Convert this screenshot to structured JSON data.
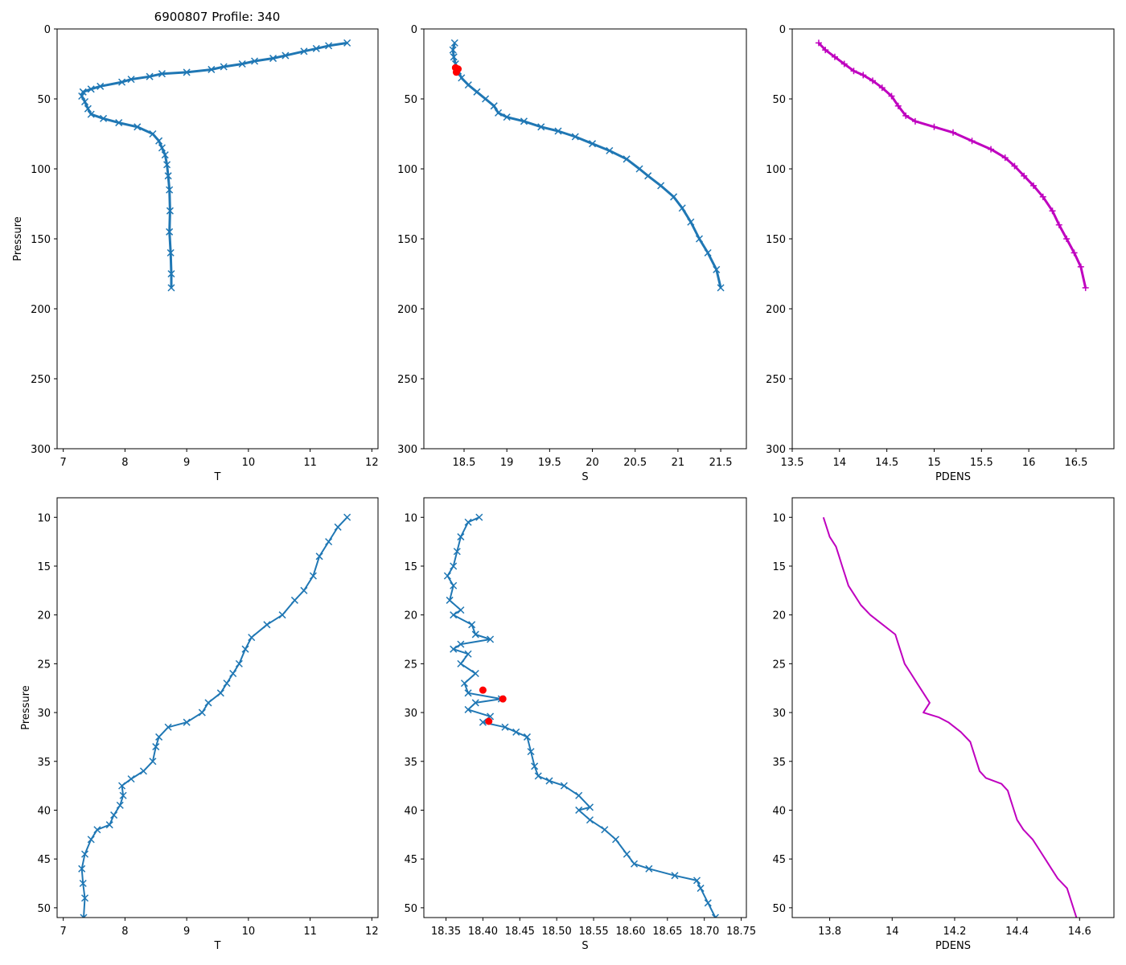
{
  "figure_title": "6900807 Profile: 340",
  "colors": {
    "series": "#1f77b4",
    "flag": "#ff0000",
    "pdens": "#bf00bf",
    "frame": "#000000"
  },
  "chart_data": [
    {
      "id": "top-left",
      "type": "line",
      "title": "6900807 Profile: 340",
      "xlabel": "T",
      "ylabel": "Pressure",
      "xlim": [
        6.9,
        12.1
      ],
      "ylim": [
        300,
        0
      ],
      "xticks": [
        7,
        8,
        9,
        10,
        11,
        12
      ],
      "yticks": [
        0,
        50,
        100,
        150,
        200,
        250,
        300
      ],
      "marker": "x",
      "series": [
        {
          "name": "T",
          "color": "#1f77b4",
          "points": [
            [
              11.6,
              10
            ],
            [
              11.3,
              12
            ],
            [
              11.1,
              14
            ],
            [
              10.9,
              16
            ],
            [
              10.6,
              19
            ],
            [
              10.4,
              21
            ],
            [
              10.1,
              23
            ],
            [
              9.9,
              25
            ],
            [
              9.6,
              27
            ],
            [
              9.4,
              29
            ],
            [
              9.0,
              31
            ],
            [
              8.6,
              32
            ],
            [
              8.4,
              34
            ],
            [
              8.1,
              36
            ],
            [
              7.95,
              38
            ],
            [
              7.6,
              41
            ],
            [
              7.45,
              43
            ],
            [
              7.32,
              45
            ],
            [
              7.3,
              48
            ],
            [
              7.35,
              52
            ],
            [
              7.4,
              57
            ],
            [
              7.45,
              61
            ],
            [
              7.65,
              64
            ],
            [
              7.9,
              67
            ],
            [
              8.2,
              70
            ],
            [
              8.45,
              75
            ],
            [
              8.55,
              80
            ],
            [
              8.6,
              85
            ],
            [
              8.65,
              90
            ],
            [
              8.68,
              97
            ],
            [
              8.7,
              105
            ],
            [
              8.72,
              115
            ],
            [
              8.73,
              130
            ],
            [
              8.72,
              145
            ],
            [
              8.74,
              160
            ],
            [
              8.75,
              175
            ],
            [
              8.75,
              185
            ]
          ]
        }
      ]
    },
    {
      "id": "top-middle",
      "type": "line",
      "title": "",
      "xlabel": "S",
      "ylabel": "",
      "xlim": [
        18.03,
        21.8
      ],
      "ylim": [
        300,
        0
      ],
      "xticks": [
        18.5,
        19.0,
        19.5,
        20.0,
        20.5,
        21.0,
        21.5
      ],
      "yticks": [
        0,
        50,
        100,
        150,
        200,
        250,
        300
      ],
      "marker": "x",
      "series": [
        {
          "name": "S",
          "color": "#1f77b4",
          "points": [
            [
              18.39,
              10
            ],
            [
              18.37,
              15
            ],
            [
              18.38,
              20
            ],
            [
              18.4,
              25
            ],
            [
              18.43,
              30
            ],
            [
              18.47,
              35
            ],
            [
              18.55,
              40
            ],
            [
              18.65,
              45
            ],
            [
              18.75,
              50
            ],
            [
              18.85,
              55
            ],
            [
              18.9,
              60
            ],
            [
              19.0,
              63
            ],
            [
              19.2,
              66
            ],
            [
              19.4,
              70
            ],
            [
              19.6,
              73
            ],
            [
              19.8,
              77
            ],
            [
              20.0,
              82
            ],
            [
              20.2,
              87
            ],
            [
              20.4,
              93
            ],
            [
              20.55,
              100
            ],
            [
              20.65,
              105
            ],
            [
              20.8,
              112
            ],
            [
              20.95,
              120
            ],
            [
              21.05,
              128
            ],
            [
              21.15,
              138
            ],
            [
              21.25,
              150
            ],
            [
              21.35,
              160
            ],
            [
              21.45,
              172
            ],
            [
              21.5,
              185
            ]
          ]
        }
      ],
      "flagged_points": [
        [
          18.4,
          27.7
        ],
        [
          18.43,
          28.6
        ],
        [
          18.41,
          30.9
        ]
      ]
    },
    {
      "id": "top-right",
      "type": "line",
      "title": "",
      "xlabel": "PDENS",
      "ylabel": "",
      "xlim": [
        13.5,
        16.9
      ],
      "ylim": [
        300,
        0
      ],
      "xticks": [
        13.5,
        14.0,
        14.5,
        15.0,
        15.5,
        16.0,
        16.5
      ],
      "yticks": [
        0,
        50,
        100,
        150,
        200,
        250,
        300
      ],
      "marker": "+",
      "series": [
        {
          "name": "PDENS",
          "color": "#bf00bf",
          "points": [
            [
              13.78,
              10
            ],
            [
              13.85,
              15
            ],
            [
              13.95,
              20
            ],
            [
              14.05,
              25
            ],
            [
              14.15,
              30
            ],
            [
              14.25,
              33
            ],
            [
              14.35,
              37
            ],
            [
              14.45,
              42
            ],
            [
              14.55,
              48
            ],
            [
              14.62,
              55
            ],
            [
              14.7,
              62
            ],
            [
              14.8,
              66
            ],
            [
              15.0,
              70
            ],
            [
              15.2,
              74
            ],
            [
              15.4,
              80
            ],
            [
              15.6,
              86
            ],
            [
              15.75,
              92
            ],
            [
              15.85,
              98
            ],
            [
              15.95,
              105
            ],
            [
              16.05,
              112
            ],
            [
              16.15,
              120
            ],
            [
              16.25,
              130
            ],
            [
              16.32,
              140
            ],
            [
              16.4,
              150
            ],
            [
              16.48,
              160
            ],
            [
              16.55,
              170
            ],
            [
              16.6,
              185
            ]
          ]
        }
      ]
    },
    {
      "id": "bottom-left",
      "type": "line",
      "title": "",
      "xlabel": "T",
      "ylabel": "Pressure",
      "xlim": [
        6.9,
        12.1
      ],
      "ylim": [
        51,
        8
      ],
      "xticks": [
        7,
        8,
        9,
        10,
        11,
        12
      ],
      "yticks": [
        10,
        15,
        20,
        25,
        30,
        35,
        40,
        45,
        50
      ],
      "marker": "x",
      "series": [
        {
          "name": "T",
          "color": "#1f77b4",
          "points": [
            [
              11.6,
              10
            ],
            [
              11.45,
              11
            ],
            [
              11.3,
              12.5
            ],
            [
              11.15,
              14
            ],
            [
              11.05,
              16
            ],
            [
              10.9,
              17.5
            ],
            [
              10.75,
              18.5
            ],
            [
              10.55,
              20
            ],
            [
              10.3,
              21
            ],
            [
              10.05,
              22.3
            ],
            [
              9.95,
              23.5
            ],
            [
              9.85,
              25
            ],
            [
              9.75,
              26
            ],
            [
              9.65,
              27
            ],
            [
              9.55,
              28
            ],
            [
              9.35,
              29
            ],
            [
              9.25,
              30
            ],
            [
              9.0,
              31
            ],
            [
              8.7,
              31.5
            ],
            [
              8.55,
              32.5
            ],
            [
              8.5,
              33.5
            ],
            [
              8.45,
              35
            ],
            [
              8.3,
              36
            ],
            [
              8.1,
              36.8
            ],
            [
              7.95,
              37.5
            ],
            [
              7.97,
              38.5
            ],
            [
              7.92,
              39.5
            ],
            [
              7.82,
              40.5
            ],
            [
              7.75,
              41.5
            ],
            [
              7.55,
              42
            ],
            [
              7.45,
              43
            ],
            [
              7.35,
              44.5
            ],
            [
              7.3,
              46
            ],
            [
              7.32,
              47.5
            ],
            [
              7.35,
              49
            ],
            [
              7.33,
              51
            ]
          ]
        }
      ]
    },
    {
      "id": "bottom-middle",
      "type": "line",
      "title": "",
      "xlabel": "S",
      "ylabel": "",
      "xlim": [
        18.32,
        18.757
      ],
      "ylim": [
        51,
        8
      ],
      "xticks": [
        18.35,
        18.4,
        18.45,
        18.5,
        18.55,
        18.6,
        18.65,
        18.7,
        18.75
      ],
      "tick_labels": [
        "18.35",
        "18.40",
        "18.45",
        "18.50",
        "18.55",
        "18.60",
        "18.65",
        "18.70",
        "18.75"
      ],
      "yticks": [
        10,
        15,
        20,
        25,
        30,
        35,
        40,
        45,
        50
      ],
      "marker": "x",
      "series": [
        {
          "name": "S",
          "color": "#1f77b4",
          "points": [
            [
              18.395,
              10
            ],
            [
              18.38,
              10.5
            ],
            [
              18.37,
              12
            ],
            [
              18.365,
              13.5
            ],
            [
              18.36,
              15
            ],
            [
              18.352,
              16
            ],
            [
              18.36,
              17
            ],
            [
              18.355,
              18.5
            ],
            [
              18.37,
              19.5
            ],
            [
              18.36,
              20
            ],
            [
              18.385,
              21
            ],
            [
              18.39,
              22
            ],
            [
              18.41,
              22.5
            ],
            [
              18.37,
              23
            ],
            [
              18.36,
              23.5
            ],
            [
              18.38,
              24
            ],
            [
              18.37,
              25
            ],
            [
              18.39,
              26
            ],
            [
              18.375,
              27
            ],
            [
              18.38,
              28
            ],
            [
              18.425,
              28.6
            ],
            [
              18.39,
              29
            ],
            [
              18.38,
              29.7
            ],
            [
              18.41,
              30.4
            ],
            [
              18.4,
              31
            ],
            [
              18.43,
              31.5
            ],
            [
              18.445,
              32
            ],
            [
              18.46,
              32.5
            ],
            [
              18.465,
              34
            ],
            [
              18.47,
              35.5
            ],
            [
              18.475,
              36.5
            ],
            [
              18.49,
              37
            ],
            [
              18.51,
              37.5
            ],
            [
              18.53,
              38.5
            ],
            [
              18.545,
              39.7
            ],
            [
              18.53,
              40
            ],
            [
              18.545,
              41
            ],
            [
              18.565,
              42
            ],
            [
              18.58,
              43
            ],
            [
              18.595,
              44.5
            ],
            [
              18.605,
              45.5
            ],
            [
              18.625,
              46
            ],
            [
              18.66,
              46.7
            ],
            [
              18.69,
              47.2
            ],
            [
              18.695,
              48
            ],
            [
              18.705,
              49.5
            ],
            [
              18.715,
              51
            ]
          ]
        }
      ],
      "flagged_points": [
        [
          18.4,
          27.7
        ],
        [
          18.427,
          28.6
        ],
        [
          18.408,
          30.9
        ]
      ]
    },
    {
      "id": "bottom-right",
      "type": "line",
      "title": "",
      "xlabel": "PDENS",
      "ylabel": "",
      "xlim": [
        13.68,
        14.71
      ],
      "ylim": [
        51,
        8
      ],
      "xticks": [
        13.8,
        14.0,
        14.2,
        14.4,
        14.6
      ],
      "yticks": [
        10,
        15,
        20,
        25,
        30,
        35,
        40,
        45,
        50
      ],
      "marker": "line",
      "series": [
        {
          "name": "PDENS",
          "color": "#bf00bf",
          "points": [
            [
              13.78,
              10
            ],
            [
              13.79,
              11
            ],
            [
              13.8,
              12
            ],
            [
              13.82,
              13
            ],
            [
              13.83,
              14
            ],
            [
              13.84,
              15
            ],
            [
              13.85,
              16
            ],
            [
              13.86,
              17
            ],
            [
              13.88,
              18
            ],
            [
              13.9,
              19
            ],
            [
              13.93,
              20
            ],
            [
              13.97,
              21
            ],
            [
              14.01,
              22
            ],
            [
              14.02,
              23
            ],
            [
              14.03,
              24
            ],
            [
              14.04,
              25
            ],
            [
              14.06,
              26
            ],
            [
              14.08,
              27
            ],
            [
              14.1,
              28
            ],
            [
              14.12,
              29
            ],
            [
              14.1,
              30
            ],
            [
              14.15,
              30.5
            ],
            [
              14.18,
              31
            ],
            [
              14.22,
              32
            ],
            [
              14.25,
              33
            ],
            [
              14.26,
              34
            ],
            [
              14.27,
              35
            ],
            [
              14.28,
              36
            ],
            [
              14.3,
              36.7
            ],
            [
              14.35,
              37.3
            ],
            [
              14.37,
              38
            ],
            [
              14.38,
              39
            ],
            [
              14.39,
              40
            ],
            [
              14.4,
              41
            ],
            [
              14.42,
              42
            ],
            [
              14.45,
              43
            ],
            [
              14.47,
              44
            ],
            [
              14.49,
              45
            ],
            [
              14.51,
              46
            ],
            [
              14.53,
              47
            ],
            [
              14.56,
              48
            ],
            [
              14.57,
              49
            ],
            [
              14.58,
              50
            ],
            [
              14.59,
              51
            ]
          ]
        }
      ]
    }
  ]
}
